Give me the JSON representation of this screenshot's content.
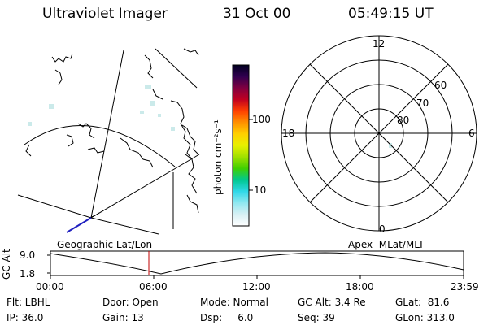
{
  "header": {
    "instrument": "Ultraviolet Imager",
    "date": "31 Oct 00",
    "time": "05:49:15 UT"
  },
  "colorbar": {
    "unit_label": "photon cm⁻²s⁻¹",
    "tick_labels": [
      "100",
      "10"
    ],
    "stops": [
      "#000020",
      "#300050",
      "#800040",
      "#c00020",
      "#ff4000",
      "#ff9000",
      "#ffd000",
      "#e8f000",
      "#a0e000",
      "#40d000",
      "#00c890",
      "#30d8e8",
      "#90e8f0",
      "#d8f0f4",
      "#ffffff"
    ]
  },
  "geo_panel": {
    "label": "Geographic Lat/Lon"
  },
  "polar_panel": {
    "label": "Apex  MLat/MLT",
    "mlt_labels": {
      "top": "12",
      "left": "18",
      "right": "6",
      "bottom": "0"
    },
    "lat_labels": [
      "60",
      "70",
      "80"
    ]
  },
  "altitude_strip": {
    "ylabel": "GC Alt",
    "ytick_labels": [
      "9.0",
      "1.8"
    ],
    "xtick_labels": [
      "00:00",
      "06:00",
      "12:00",
      "18:00",
      "23:59"
    ],
    "current_time_marker": "05:49"
  },
  "footer": {
    "row1": {
      "flt": "Flt: LBHL",
      "door": "Door: Open",
      "mode": "Mode: Normal",
      "gcalt": "GC Alt: 3.4 Re",
      "glat": "GLat:  81.6"
    },
    "row2": {
      "ip": "IP: 36.0",
      "gain": "Gain: 13",
      "dsp": "Dsp:     6.0",
      "seq": "Seq: 39",
      "glon": "GLon: 313.0"
    }
  },
  "colors": {
    "ink": "#000000",
    "marker": "#c00000",
    "emission": "#bfe6e6",
    "limb": "#2020c0"
  }
}
